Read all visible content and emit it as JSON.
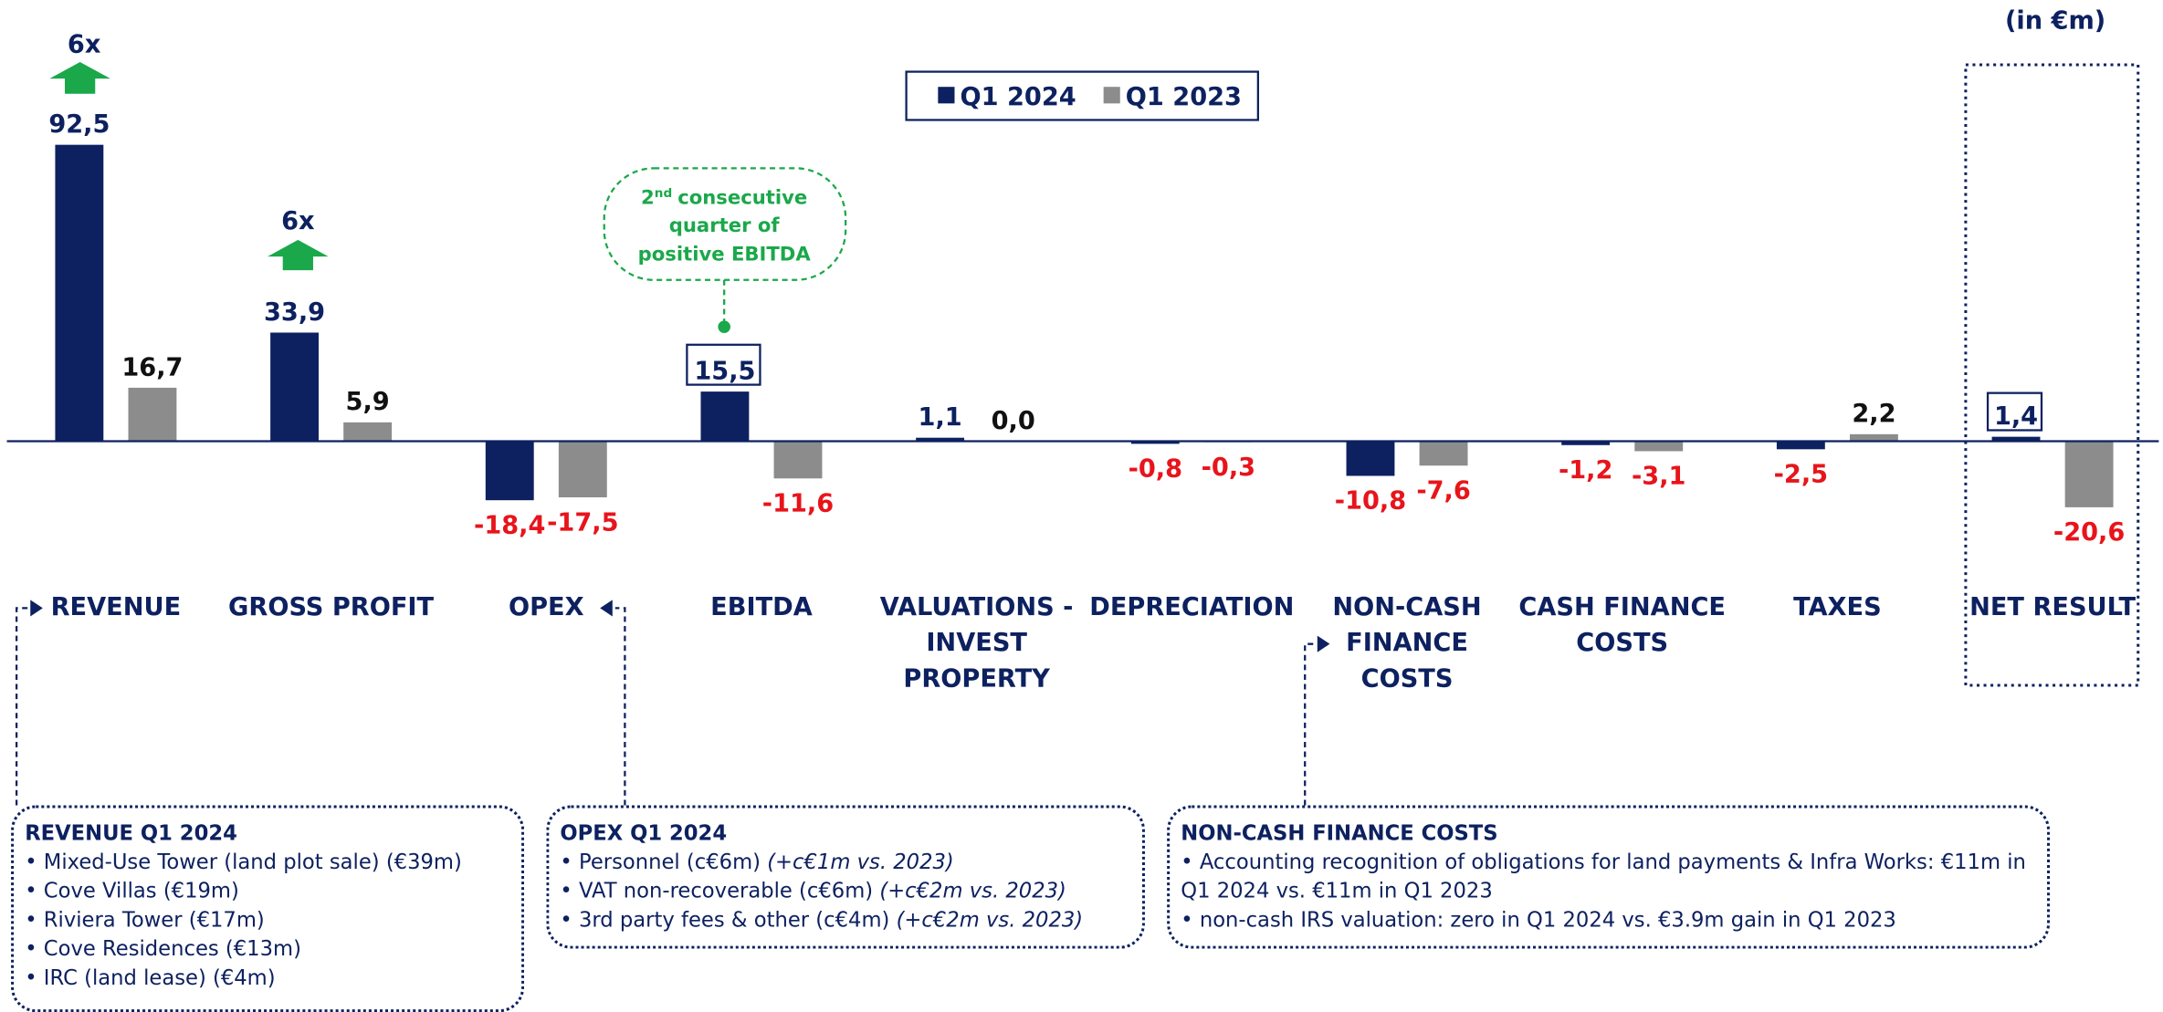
{
  "chart_data": {
    "type": "bar",
    "unit_note": "(in €m)",
    "categories": [
      "REVENUE",
      "GROSS PROFIT",
      "OPEX",
      "EBITDA",
      "VALUATIONS - INVEST PROPERTY",
      "DEPRECIATION",
      "NON-CASH FINANCE COSTS",
      "CASH FINANCE COSTS",
      "TAXES",
      "NET RESULT"
    ],
    "series": [
      {
        "name": "Q1 2024",
        "color": "#0d2160",
        "label_color": "#0d2160",
        "values": [
          92.5,
          33.9,
          -18.4,
          15.5,
          1.1,
          -0.8,
          -10.8,
          -1.2,
          -2.5,
          1.4
        ],
        "value_labels": [
          "92,5",
          "33,9",
          "-18,4",
          "15,5",
          "1,1",
          "-0,8",
          "-10,8",
          "-1,2",
          "-2,5",
          "1,4"
        ]
      },
      {
        "name": "Q1 2023",
        "color": "#8c8c8c",
        "label_color": "#111111",
        "values": [
          16.7,
          5.9,
          -17.5,
          -11.6,
          0.0,
          -0.3,
          -7.6,
          -3.1,
          2.2,
          -20.6
        ],
        "value_labels": [
          "16,7",
          "5,9",
          "-17,5",
          "-11,6",
          "0,0",
          "-0,3",
          "-7,6",
          "-3,1",
          "2,2",
          "-20,6"
        ]
      }
    ],
    "negative_label_color": "#e8141b",
    "growth_badges": [
      "6x",
      "6x"
    ],
    "callout": {
      "ordinal": "2",
      "suffix": "nd",
      "lines": [
        "consecutive",
        "quarter of",
        "positive EBITDA"
      ]
    }
  },
  "notes": [
    {
      "title": "REVENUE Q1 2024",
      "items": [
        "Mixed-Use Tower (land plot sale) (€39m)",
        "Cove Villas (€19m)",
        "Riviera Tower (€17m)",
        "Cove Residences (€13m)",
        "IRC (land lease) (€4m)"
      ]
    },
    {
      "title": "OPEX Q1 2024",
      "items": [
        [
          "Personnel (c€6m)",
          "(+c€1m vs. 2023)"
        ],
        [
          "VAT non-recoverable (c€6m)",
          "(+c€2m vs. 2023)"
        ],
        [
          "3rd party fees & other (c€4m)",
          "(+c€2m vs. 2023)"
        ]
      ]
    },
    {
      "title": "NON-CASH FINANCE COSTS",
      "items": [
        "Accounting recognition of obligations for land payments & Infra Works: €11m in Q1 2024 vs. €11m in Q1 2023",
        "non-cash IRS valuation: zero in Q1 2024 vs. €3.9m gain in Q1 2023"
      ]
    }
  ]
}
